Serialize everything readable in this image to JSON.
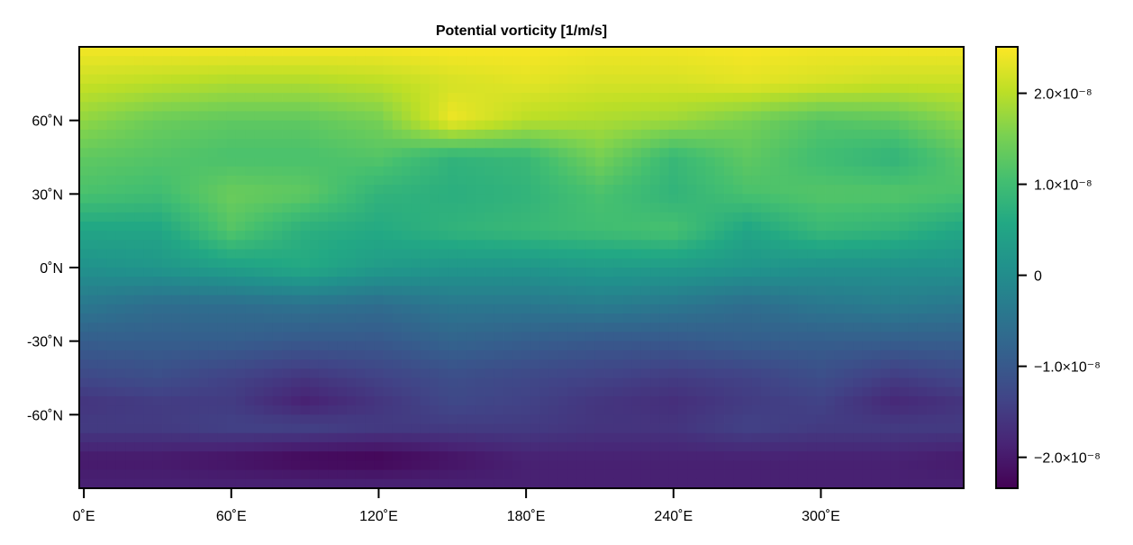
{
  "chart_data": {
    "type": "heatmap",
    "title": "Potential vorticity [1/m/s]",
    "xlabel": "",
    "ylabel": "",
    "value_unit_scale": 1e-08,
    "colormap": "viridis",
    "colorrange": [
      -2.34,
      2.51
    ],
    "xlim": [
      -1.875,
      358.125
    ],
    "ylim": [
      -90,
      90
    ],
    "grid": false,
    "legend": "colorbar-right",
    "x_ticks": [
      {
        "value": 0,
        "label": "0˚E"
      },
      {
        "value": 60,
        "label": "60˚E"
      },
      {
        "value": 120,
        "label": "120˚E"
      },
      {
        "value": 180,
        "label": "180˚E"
      },
      {
        "value": 240,
        "label": "240˚E"
      },
      {
        "value": 300,
        "label": "300˚E"
      }
    ],
    "y_ticks": [
      {
        "value": 60,
        "label": "60˚N"
      },
      {
        "value": 30,
        "label": "30˚N"
      },
      {
        "value": 0,
        "label": "0˚N"
      },
      {
        "value": -30,
        "label": "-30˚N"
      },
      {
        "value": -60,
        "label": "-60˚N"
      }
    ],
    "colorbar_ticks": [
      {
        "value": 2.0,
        "label": "2.0×10⁻⁸"
      },
      {
        "value": 1.0,
        "label": "1.0×10⁻⁸"
      },
      {
        "value": 0,
        "label": "0"
      },
      {
        "value": -1.0,
        "label": "−1.0×10⁻⁸"
      },
      {
        "value": -2.0,
        "label": "−2.0×10⁻⁸"
      }
    ],
    "lons": [
      0,
      30,
      60,
      90,
      120,
      150,
      180,
      210,
      240,
      270,
      300,
      330
    ],
    "lats": [
      88,
      75,
      60,
      45,
      30,
      15,
      0,
      -15,
      -30,
      -45,
      -55,
      -65,
      -78,
      -88
    ],
    "values": [
      [
        2.4,
        2.4,
        2.4,
        2.4,
        2.4,
        2.45,
        2.45,
        2.4,
        2.4,
        2.45,
        2.4,
        2.4
      ],
      [
        2.1,
        2.0,
        1.9,
        1.9,
        2.0,
        2.2,
        2.3,
        2.2,
        2.2,
        2.3,
        2.2,
        2.1
      ],
      [
        1.7,
        1.4,
        1.3,
        1.3,
        1.5,
        2.4,
        2.0,
        1.9,
        1.8,
        1.5,
        1.2,
        1.3
      ],
      [
        1.3,
        1.2,
        1.1,
        1.1,
        1.2,
        0.8,
        0.9,
        1.5,
        0.9,
        1.3,
        1.0,
        0.8
      ],
      [
        1.1,
        1.0,
        1.4,
        1.3,
        0.8,
        0.7,
        0.8,
        1.1,
        0.8,
        1.1,
        1.2,
        1.2
      ],
      [
        0.5,
        0.5,
        1.2,
        0.7,
        0.6,
        0.8,
        0.9,
        1.0,
        1.1,
        0.5,
        0.9,
        0.8
      ],
      [
        0.1,
        0.2,
        0.4,
        0.6,
        0.3,
        0.2,
        0.2,
        0.3,
        0.3,
        0.2,
        0.1,
        0.1
      ],
      [
        -0.4,
        -0.6,
        -0.6,
        -0.5,
        -0.6,
        -0.4,
        -0.4,
        -0.3,
        -0.4,
        -0.6,
        -0.4,
        -0.3
      ],
      [
        -0.9,
        -0.9,
        -0.9,
        -1.0,
        -1.0,
        -0.8,
        -0.9,
        -1.0,
        -1.0,
        -0.9,
        -0.9,
        -0.9
      ],
      [
        -1.3,
        -1.2,
        -1.4,
        -1.6,
        -1.4,
        -1.2,
        -1.3,
        -1.4,
        -1.5,
        -1.4,
        -1.2,
        -1.5
      ],
      [
        -1.6,
        -1.5,
        -1.5,
        -1.9,
        -1.6,
        -1.3,
        -1.4,
        -1.6,
        -1.7,
        -1.5,
        -1.4,
        -1.8
      ],
      [
        -1.5,
        -1.5,
        -1.4,
        -1.4,
        -1.5,
        -1.5,
        -1.5,
        -1.6,
        -1.6,
        -1.4,
        -1.5,
        -1.5
      ],
      [
        -2.0,
        -2.0,
        -2.1,
        -2.25,
        -2.3,
        -2.1,
        -1.9,
        -1.9,
        -1.9,
        -1.9,
        -1.9,
        -1.9
      ],
      [
        -1.9,
        -1.9,
        -1.9,
        -1.9,
        -1.9,
        -1.9,
        -1.9,
        -1.9,
        -1.9,
        -1.9,
        -1.9,
        -1.9
      ]
    ]
  }
}
